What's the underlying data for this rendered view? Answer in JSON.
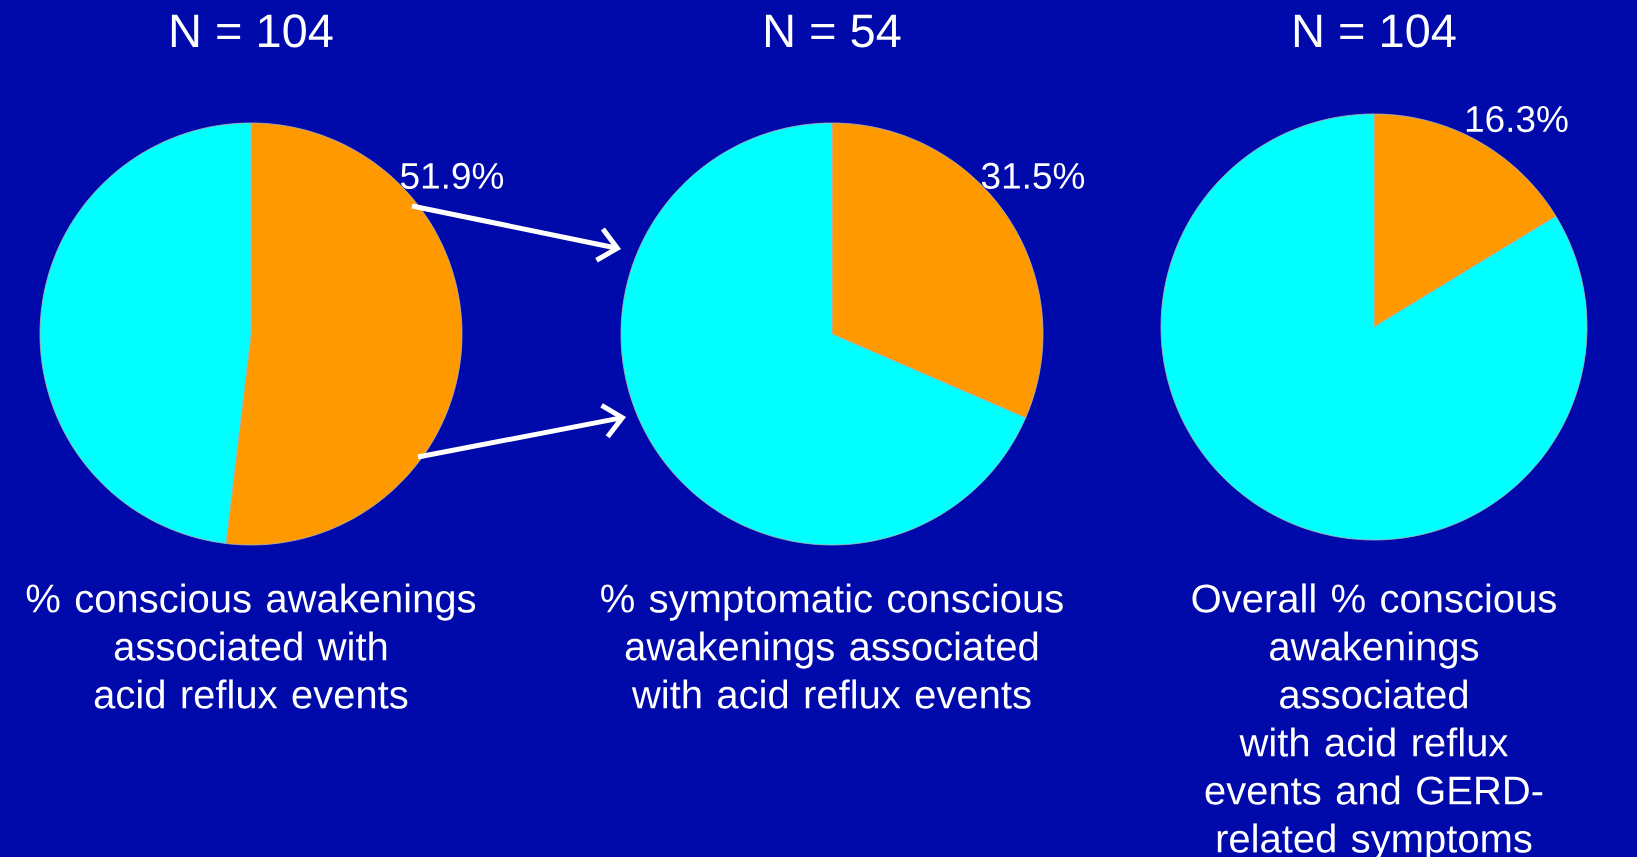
{
  "chart_data": [
    {
      "type": "pie",
      "title": "N = 104",
      "xlabel": "% conscious awakenings associated with acid reflux events",
      "categories": [
        null,
        null
      ],
      "values": [
        51.9,
        48.1
      ],
      "colors": [
        "#ff9900",
        "#00ffff"
      ],
      "value_labels": [
        "51.9%",
        null
      ]
    },
    {
      "type": "pie",
      "title": "N = 54",
      "xlabel": "% symptomatic conscious awakenings associated with acid reflux events",
      "categories": [
        null,
        null
      ],
      "values": [
        31.5,
        68.5
      ],
      "colors": [
        "#ff9900",
        "#00ffff"
      ],
      "value_labels": [
        "31.5%",
        null
      ]
    },
    {
      "type": "pie",
      "title": "N = 104",
      "xlabel": "Overall % conscious awakenings associated with acid reflux events and GERD-related symptoms",
      "categories": [
        null,
        null
      ],
      "values": [
        16.3,
        83.7
      ],
      "colors": [
        "#ff9900",
        "#00ffff"
      ],
      "value_labels": [
        "16.3%",
        null
      ]
    }
  ]
}
